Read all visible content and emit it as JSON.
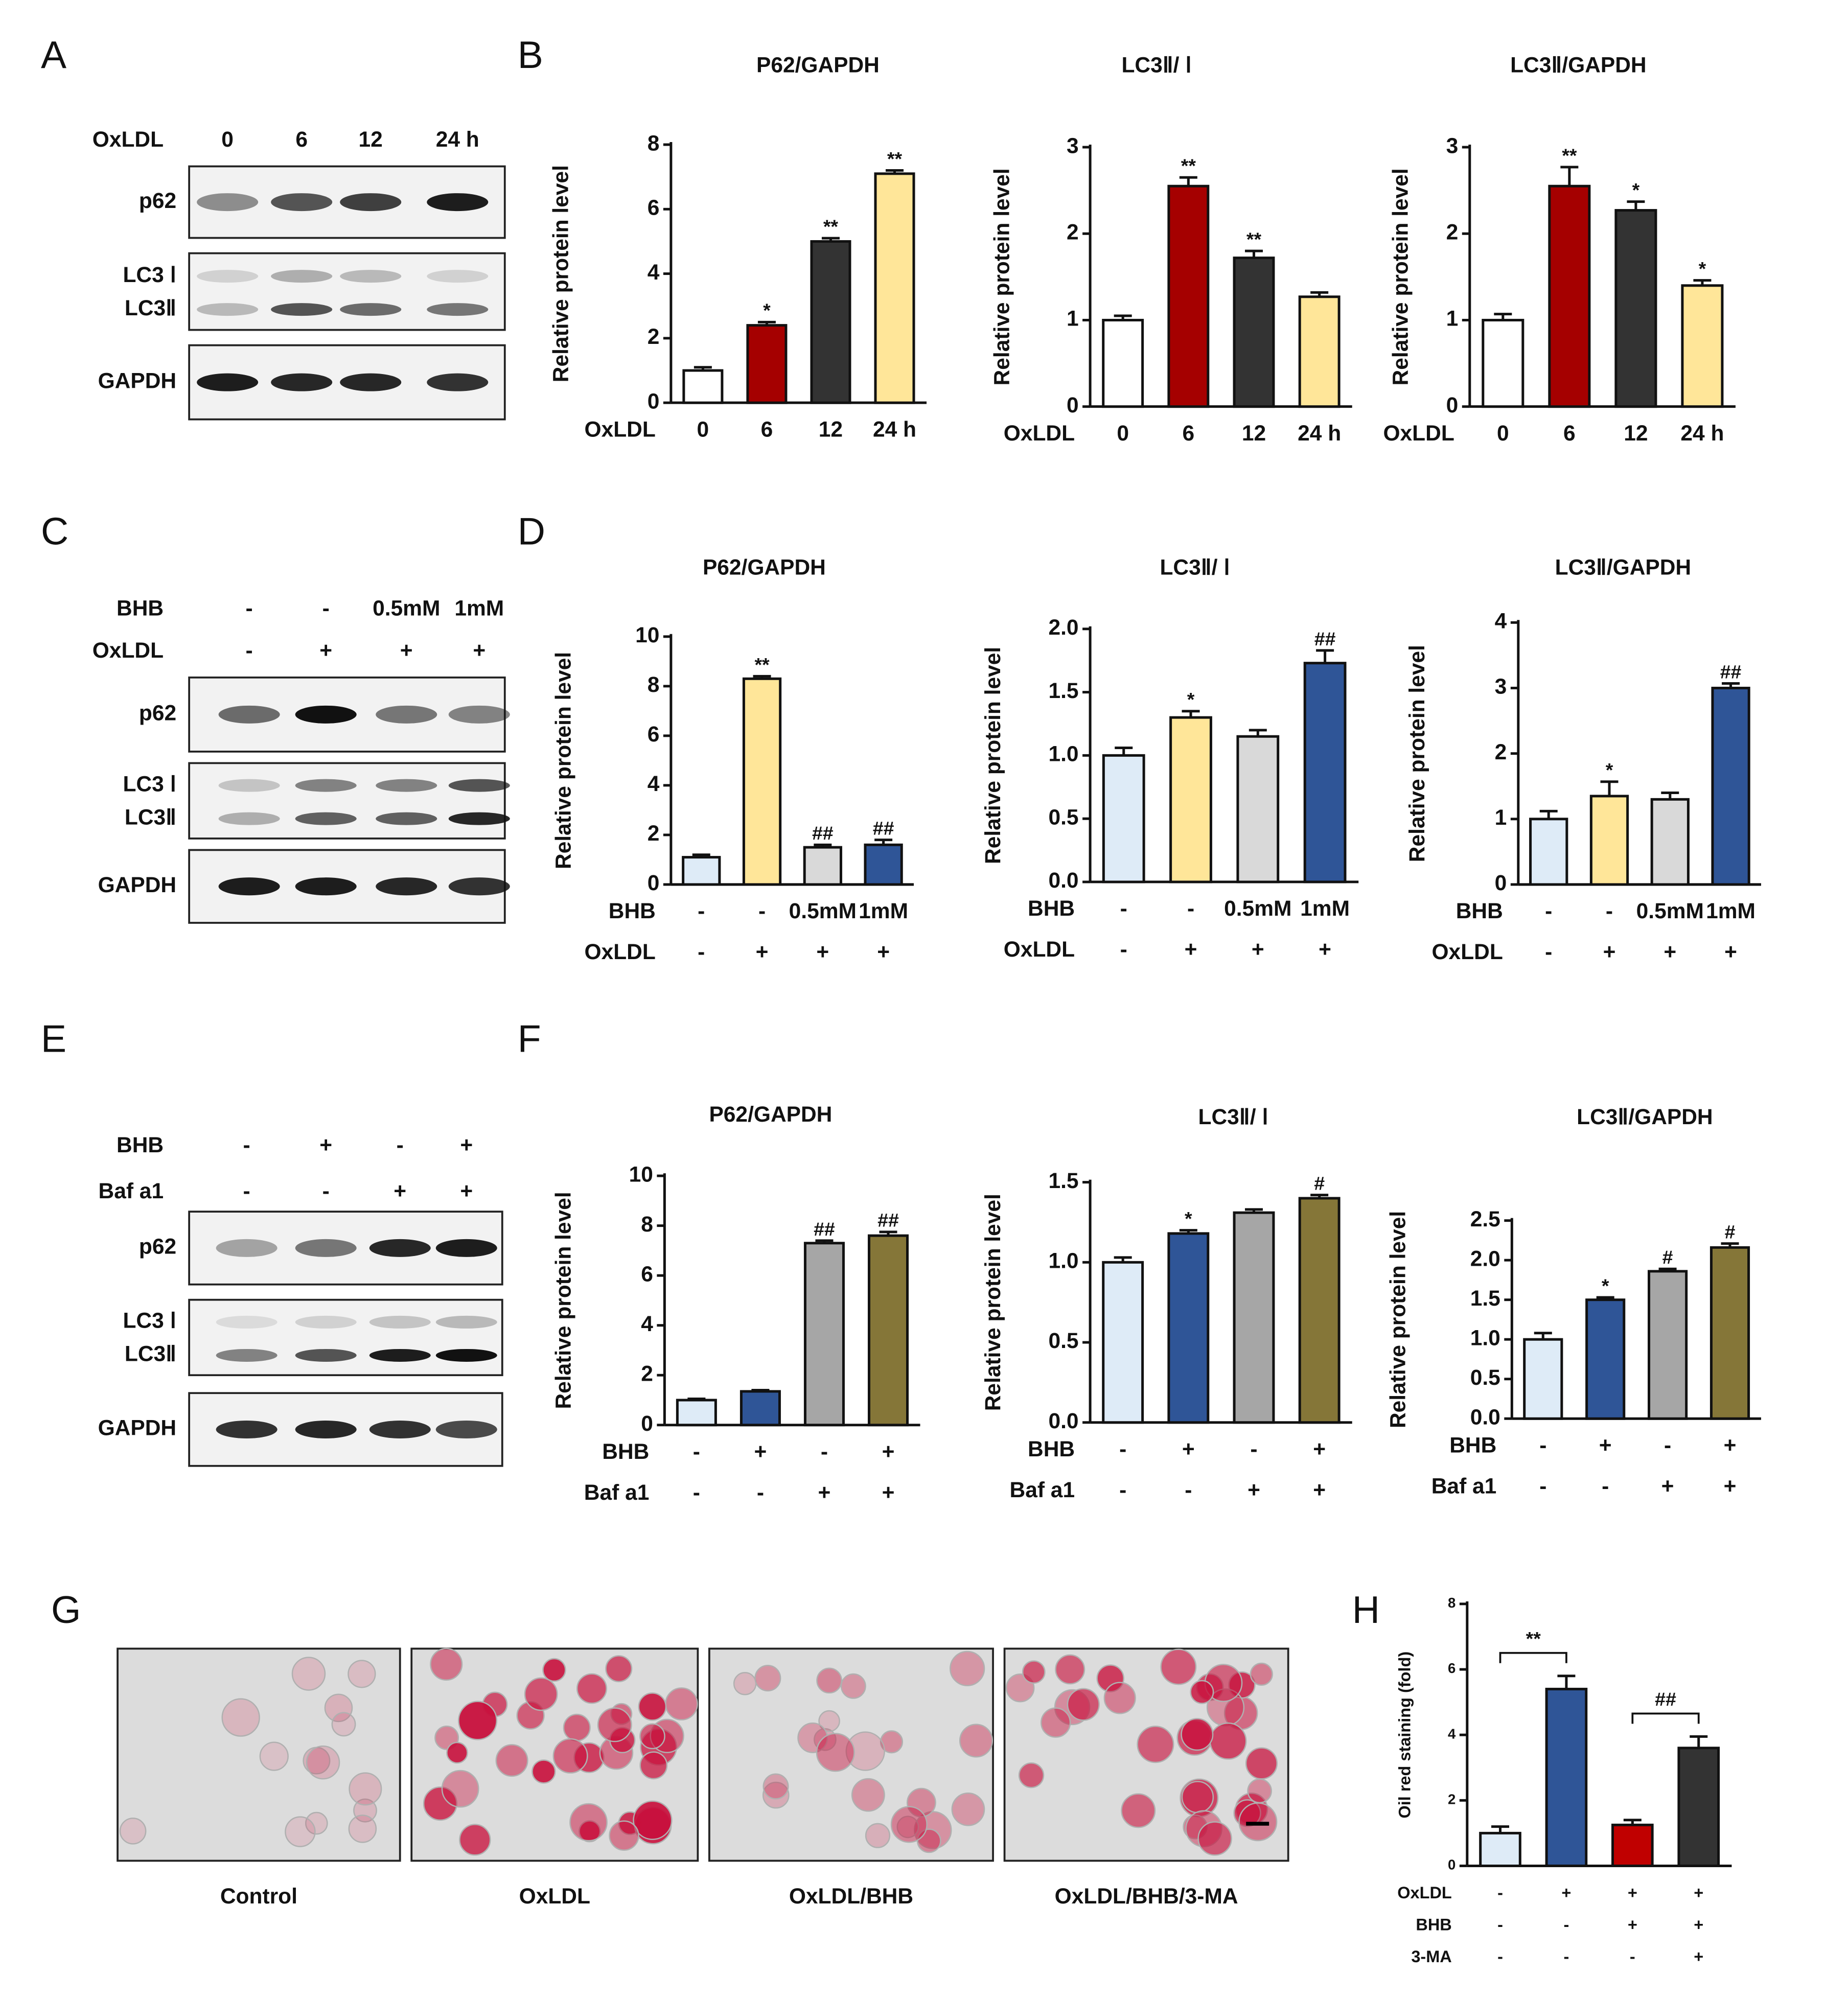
{
  "panel_labels": [
    "A",
    "B",
    "C",
    "D",
    "E",
    "F",
    "G",
    "H"
  ],
  "blots": [
    {
      "factors": [
        {
          "name": "OxLDL",
          "levels": [
            "0",
            "6",
            "12",
            "24 h"
          ]
        }
      ],
      "bands": [
        [
          "p62"
        ],
        [
          "LC3 Ⅰ",
          "LC3Ⅱ"
        ],
        [
          "GAPDH"
        ]
      ]
    },
    {
      "factors": [
        {
          "name": "BHB",
          "levels": [
            "-",
            "-",
            "0.5mM",
            "1mM"
          ]
        },
        {
          "name": "OxLDL",
          "levels": [
            "-",
            "+",
            "+",
            "+"
          ]
        }
      ],
      "bands": [
        [
          "p62"
        ],
        [
          "LC3 Ⅰ",
          "LC3Ⅱ"
        ],
        [
          "GAPDH"
        ]
      ]
    },
    {
      "factors": [
        {
          "name": "BHB",
          "levels": [
            "-",
            "+",
            "-",
            "+"
          ]
        },
        {
          "name": "Baf a1",
          "levels": [
            "-",
            "-",
            "+",
            "+"
          ]
        }
      ],
      "bands": [
        [
          "p62"
        ],
        [
          "LC3 Ⅰ",
          "LC3Ⅱ"
        ],
        [
          "GAPDH"
        ]
      ]
    }
  ],
  "chart_data": [
    {
      "type": "bar",
      "title": "P62/GAPDH",
      "y_label": "Relative protein level",
      "factors": [
        {
          "name": "OxLDL",
          "levels": [
            "0",
            "6",
            "12",
            "24 h"
          ]
        }
      ],
      "values": [
        1.0,
        2.4,
        5.0,
        7.1
      ],
      "errors": [
        0.1,
        0.1,
        0.1,
        0.1
      ],
      "annotations": [
        null,
        "*",
        "**",
        "**"
      ],
      "colors": [
        "#ffffff",
        "#a50000",
        "#333333",
        "#ffe699"
      ],
      "ylim": [
        0,
        8
      ],
      "yticks": [
        0,
        2,
        4,
        6,
        8
      ]
    },
    {
      "type": "bar",
      "title": "LC3Ⅱ/ Ⅰ",
      "y_label": "Relative protein level",
      "factors": [
        {
          "name": "OxLDL",
          "levels": [
            "0",
            "6",
            "12",
            "24 h"
          ]
        }
      ],
      "values": [
        1.0,
        2.55,
        1.72,
        1.27
      ],
      "errors": [
        0.05,
        0.1,
        0.08,
        0.05
      ],
      "annotations": [
        null,
        "**",
        "**",
        null
      ],
      "colors": [
        "#ffffff",
        "#a50000",
        "#333333",
        "#ffe699"
      ],
      "ylim": [
        0,
        3
      ],
      "yticks": [
        0,
        1,
        2,
        3
      ]
    },
    {
      "type": "bar",
      "title": "LC3Ⅱ/GAPDH",
      "y_label": "Relative protein level",
      "factors": [
        {
          "name": "OxLDL",
          "levels": [
            "0",
            "6",
            "12",
            "24 h"
          ]
        }
      ],
      "values": [
        1.0,
        2.55,
        2.27,
        1.4
      ],
      "errors": [
        0.07,
        0.22,
        0.1,
        0.06
      ],
      "annotations": [
        null,
        "**",
        "*",
        "*"
      ],
      "colors": [
        "#ffffff",
        "#a50000",
        "#333333",
        "#ffe699"
      ],
      "ylim": [
        0,
        3
      ],
      "yticks": [
        0,
        1,
        2,
        3
      ]
    },
    {
      "type": "bar",
      "title": "P62/GAPDH",
      "y_label": "Relative protein level",
      "factors": [
        {
          "name": "BHB",
          "levels": [
            "-",
            "-",
            "0.5mM",
            "1mM"
          ]
        },
        {
          "name": "OxLDL",
          "levels": [
            "-",
            "+",
            "+",
            "+"
          ]
        }
      ],
      "values": [
        1.1,
        8.3,
        1.5,
        1.6
      ],
      "errors": [
        0.1,
        0.1,
        0.1,
        0.2
      ],
      "annotations": [
        null,
        "**",
        "##",
        "##"
      ],
      "colors": [
        "#deebf7",
        "#ffe699",
        "#d9d9d9",
        "#2f5597"
      ],
      "ylim": [
        0,
        10
      ],
      "yticks": [
        0,
        2,
        4,
        6,
        8,
        10
      ]
    },
    {
      "type": "bar",
      "title": "LC3Ⅱ/ Ⅰ",
      "y_label": "Relative protein level",
      "factors": [
        {
          "name": "BHB",
          "levels": [
            "-",
            "-",
            "0.5mM",
            "1mM"
          ]
        },
        {
          "name": "OxLDL",
          "levels": [
            "-",
            "+",
            "+",
            "+"
          ]
        }
      ],
      "values": [
        1.0,
        1.3,
        1.15,
        1.73
      ],
      "errors": [
        0.06,
        0.05,
        0.05,
        0.1
      ],
      "annotations": [
        null,
        "*",
        null,
        "##"
      ],
      "colors": [
        "#deebf7",
        "#ffe699",
        "#d9d9d9",
        "#2f5597"
      ],
      "ylim": [
        0,
        2
      ],
      "yticks": [
        {
          "value": 0,
          "label": "0.0"
        },
        0.5,
        {
          "value": 1,
          "label": "1.0"
        },
        1.5,
        {
          "value": 2,
          "label": "2.0"
        }
      ]
    },
    {
      "type": "bar",
      "title": "LC3Ⅱ/GAPDH",
      "y_label": "Relative protein level",
      "factors": [
        {
          "name": "BHB",
          "levels": [
            "-",
            "-",
            "0.5mM",
            "1mM"
          ]
        },
        {
          "name": "OxLDL",
          "levels": [
            "-",
            "+",
            "+",
            "+"
          ]
        }
      ],
      "values": [
        1.0,
        1.35,
        1.3,
        3.0
      ],
      "errors": [
        0.12,
        0.22,
        0.1,
        0.07
      ],
      "annotations": [
        null,
        "*",
        null,
        "##"
      ],
      "colors": [
        "#deebf7",
        "#ffe699",
        "#d9d9d9",
        "#2f5597"
      ],
      "ylim": [
        0,
        4
      ],
      "yticks": [
        0,
        1,
        2,
        3,
        4
      ]
    },
    {
      "type": "bar",
      "title": "P62/GAPDH",
      "y_label": "Relative protein level",
      "factors": [
        {
          "name": "BHB",
          "levels": [
            "-",
            "+",
            "-",
            "+"
          ]
        },
        {
          "name": "Baf a1",
          "levels": [
            "-",
            "-",
            "+",
            "+"
          ]
        }
      ],
      "values": [
        1.0,
        1.35,
        7.3,
        7.6
      ],
      "errors": [
        0.05,
        0.05,
        0.1,
        0.15
      ],
      "annotations": [
        null,
        null,
        "##",
        "##"
      ],
      "colors": [
        "#deebf7",
        "#2f5597",
        "#a6a6a6",
        "#857638"
      ],
      "ylim": [
        0,
        10
      ],
      "yticks": [
        0,
        2,
        4,
        6,
        8,
        10
      ]
    },
    {
      "type": "bar",
      "title": "LC3Ⅱ/ Ⅰ",
      "y_label": "Relative protein level",
      "factors": [
        {
          "name": "BHB",
          "levels": [
            "-",
            "+",
            "-",
            "+"
          ]
        },
        {
          "name": "Baf a1",
          "levels": [
            "-",
            "-",
            "+",
            "+"
          ]
        }
      ],
      "values": [
        1.0,
        1.18,
        1.31,
        1.4
      ],
      "errors": [
        0.03,
        0.02,
        0.02,
        0.02
      ],
      "annotations": [
        null,
        "*",
        null,
        "#"
      ],
      "colors": [
        "#deebf7",
        "#2f5597",
        "#a6a6a6",
        "#857638"
      ],
      "ylim": [
        0,
        1.5
      ],
      "yticks": [
        {
          "value": 0,
          "label": "0.0"
        },
        0.5,
        {
          "value": 1,
          "label": "1.0"
        },
        1.5
      ]
    },
    {
      "type": "bar",
      "title": "LC3Ⅱ/GAPDH",
      "y_label": "Relative protein level",
      "factors": [
        {
          "name": "BHB",
          "levels": [
            "-",
            "+",
            "-",
            "+"
          ]
        },
        {
          "name": "Baf a1",
          "levels": [
            "-",
            "-",
            "+",
            "+"
          ]
        }
      ],
      "values": [
        1.0,
        1.5,
        1.86,
        2.16
      ],
      "errors": [
        0.08,
        0.03,
        0.03,
        0.05
      ],
      "annotations": [
        null,
        "*",
        "#",
        "#"
      ],
      "colors": [
        "#deebf7",
        "#2f5597",
        "#a6a6a6",
        "#857638"
      ],
      "ylim": [
        0,
        2.5
      ],
      "yticks": [
        {
          "value": 0,
          "label": "0.0"
        },
        0.5,
        {
          "value": 1,
          "label": "1.0"
        },
        1.5,
        {
          "value": 2,
          "label": "2.0"
        },
        2.5
      ]
    },
    {
      "type": "bar",
      "y_label": "Oil red staining  (fold)",
      "factors": [
        {
          "name": "OxLDL",
          "levels": [
            "-",
            "+",
            "+",
            "+"
          ]
        },
        {
          "name": "BHB",
          "levels": [
            "-",
            "-",
            "+",
            "+"
          ]
        },
        {
          "name": "3-MA",
          "levels": [
            "-",
            "-",
            "-",
            "+"
          ]
        }
      ],
      "values": [
        1.0,
        5.4,
        1.25,
        3.6
      ],
      "errors": [
        0.2,
        0.4,
        0.15,
        0.35
      ],
      "comparisons": [
        {
          "groups": [
            0,
            1
          ],
          "label": "**"
        },
        {
          "groups": [
            2,
            3
          ],
          "label": "##"
        }
      ],
      "colors": [
        "#deebf7",
        "#2f5597",
        "#c00000",
        "#333333"
      ],
      "ylim": [
        0,
        8
      ],
      "yticks": [
        0,
        2,
        4,
        6,
        8
      ]
    }
  ],
  "micrographs": {
    "captions": [
      "Control",
      "OxLDL",
      "OxLDL/BHB",
      "OxLDL/BHB/3-MA"
    ]
  }
}
